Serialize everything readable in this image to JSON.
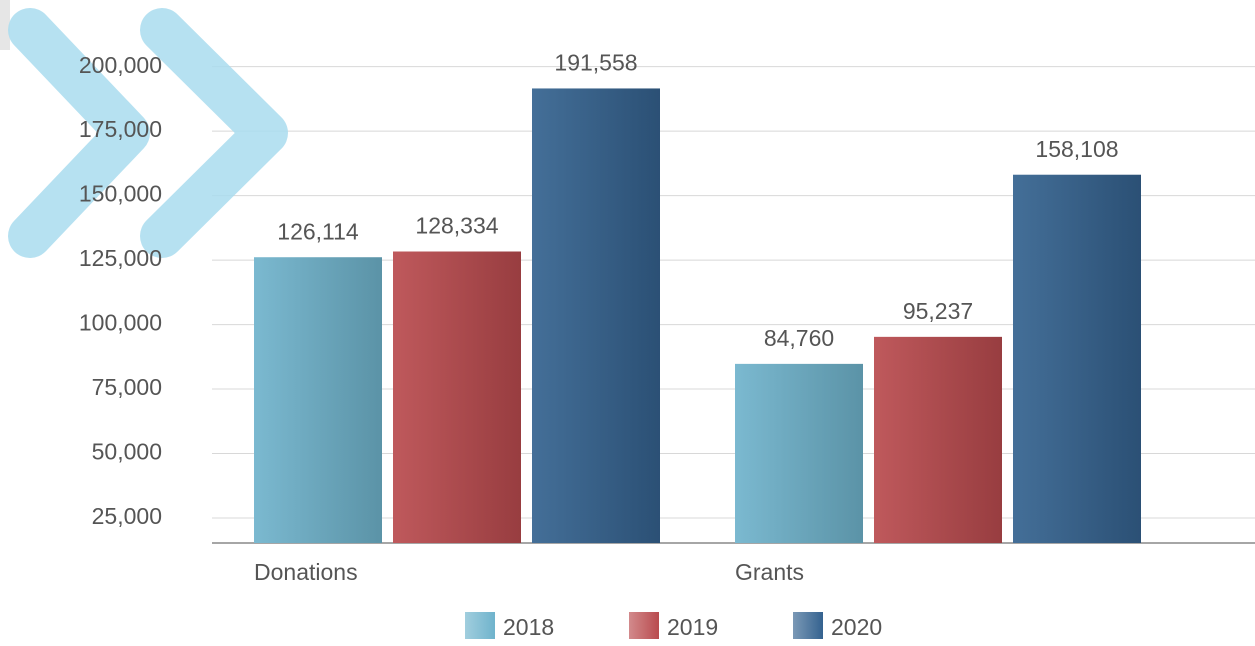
{
  "chart_data": {
    "type": "bar",
    "categories": [
      "Donations",
      "Grants"
    ],
    "series": [
      {
        "name": "2018",
        "color": "#6fb3cc",
        "values": [
          126114,
          84760
        ],
        "value_labels": [
          "126,114",
          "84,760"
        ]
      },
      {
        "name": "2019",
        "color": "#b94b4e",
        "values": [
          128334,
          95237
        ],
        "value_labels": [
          "128,334",
          "95,237"
        ]
      },
      {
        "name": "2020",
        "color": "#34628f",
        "values": [
          191558,
          158108
        ],
        "value_labels": [
          "191,558",
          "158,108"
        ]
      }
    ],
    "ylim": [
      15300,
      215000
    ],
    "yticks": [
      {
        "value": 25000,
        "label": "25,000"
      },
      {
        "value": 50000,
        "label": "50,000"
      },
      {
        "value": 75000,
        "label": "75,000"
      },
      {
        "value": 100000,
        "label": "100,000"
      },
      {
        "value": 125000,
        "label": "125,000"
      },
      {
        "value": 150000,
        "label": "150,000"
      },
      {
        "value": 175000,
        "label": "175,000"
      },
      {
        "value": 200000,
        "label": "200,000"
      }
    ],
    "grid": true,
    "legend": "bottom"
  }
}
